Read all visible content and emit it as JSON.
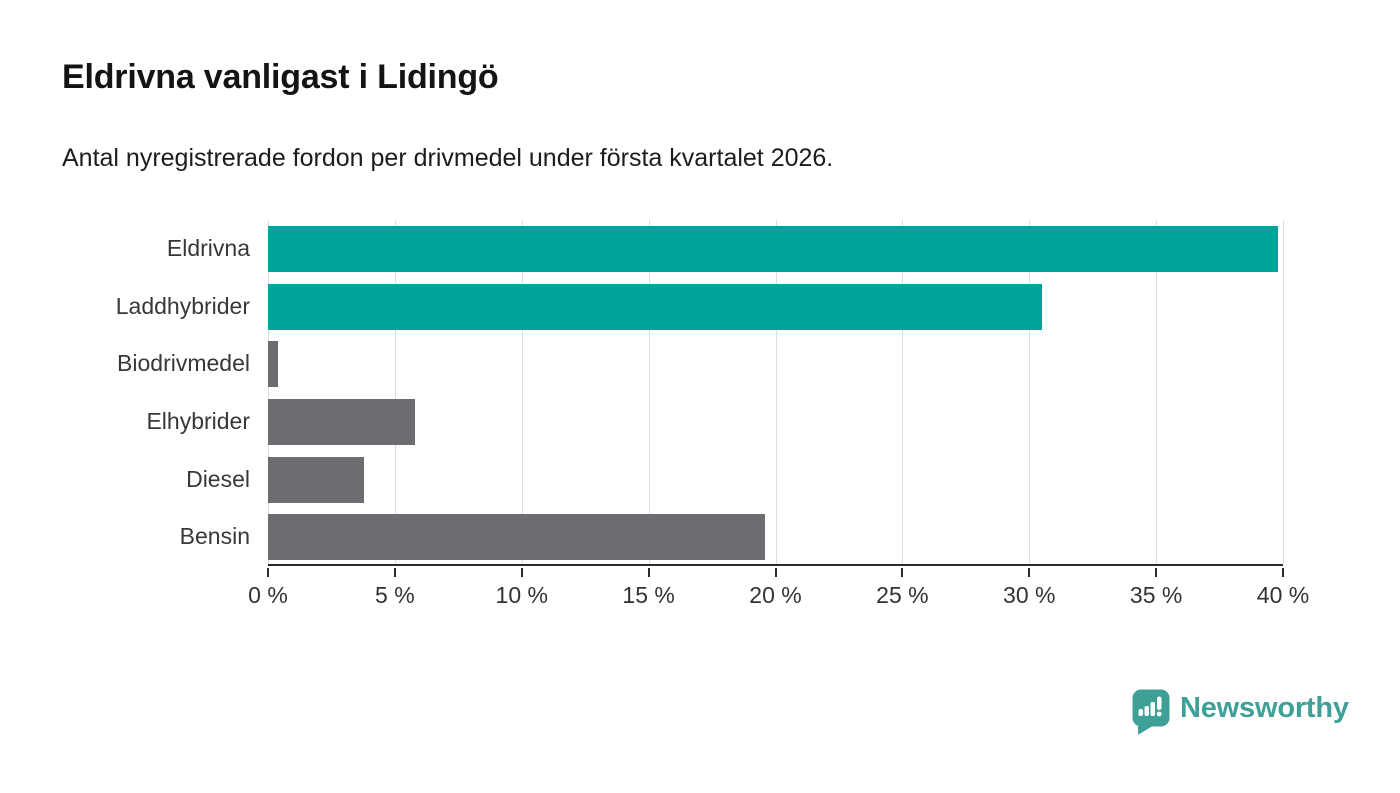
{
  "header": {
    "title": "Eldrivna vanligast i Lidingö",
    "subtitle": "Antal nyregistrerade fordon per drivmedel under första kvartalet 2026."
  },
  "chart_data": {
    "type": "bar",
    "orientation": "horizontal",
    "title": "Eldrivna vanligast i Lidingö",
    "subtitle": "Antal nyregistrerade fordon per drivmedel under första kvartalet 2026.",
    "categories": [
      "Eldrivna",
      "Laddhybrider",
      "Biodrivmedel",
      "Elhybrider",
      "Diesel",
      "Bensin"
    ],
    "values": [
      39.8,
      30.5,
      0.4,
      5.8,
      3.8,
      19.6
    ],
    "unit": "%",
    "bar_colors": [
      "#00a49b",
      "#00a49b",
      "#6c6c71",
      "#6c6c71",
      "#6c6c71",
      "#6c6c71"
    ],
    "highlight_color": "#00a49b",
    "default_color": "#6c6c71",
    "xlim": [
      0,
      40
    ],
    "xticks": [
      0,
      5,
      10,
      15,
      20,
      25,
      30,
      35,
      40
    ],
    "xtick_labels": [
      "0 %",
      "5 %",
      "10 %",
      "15 %",
      "20 %",
      "25 %",
      "30 %",
      "35 %",
      "40 %"
    ],
    "grid": "vertical",
    "gridline_color": "#dcdcdc",
    "axis_color": "#2b2b2b",
    "legend": "none"
  },
  "branding": {
    "name": "Newsworthy",
    "color": "#3fa098",
    "icon": "newsworthy-pin-barchart-icon"
  }
}
